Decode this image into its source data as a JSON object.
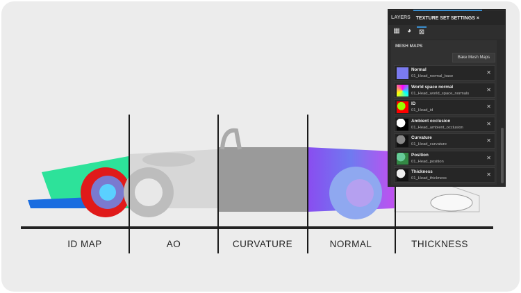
{
  "sections": [
    {
      "label": "ID MAP"
    },
    {
      "label": "AO"
    },
    {
      "label": "CURVATURE"
    },
    {
      "label": "NORMAL"
    },
    {
      "label": "THICKNESS"
    }
  ],
  "panel": {
    "tabs": [
      {
        "label": "LAYERS"
      },
      {
        "label": "TEXTURE SET SETTINGS",
        "active": true
      }
    ],
    "close_icon": "×",
    "tools": [
      {
        "icon": "texture-set-icon",
        "glyph": "▦"
      },
      {
        "icon": "mesh-maps-icon",
        "glyph": "◕"
      },
      {
        "icon": "uv-icon",
        "glyph": "⊠"
      }
    ],
    "section_title": "MESH MAPS",
    "bake_label": "Bake Mesh Maps",
    "maps": [
      {
        "name": "Normal",
        "file": "01_Head_normal_base",
        "thumb": "#7b7bf0"
      },
      {
        "name": "World space normal",
        "file": "01_Head_world_space_normals",
        "thumb": "conic-gradient(#f0f,#0ff,#ff0,#f0f)"
      },
      {
        "name": "ID",
        "file": "01_Head_id",
        "thumb": "radial-gradient(circle at 40% 40%,#9f0 40%,#f00 41%)"
      },
      {
        "name": "Ambient occlusion",
        "file": "01_Head_ambient_occlusion",
        "thumb": "radial-gradient(circle at 35% 35%,#fff 40%,#000 42%)"
      },
      {
        "name": "Curvature",
        "file": "01_Head_curvature",
        "thumb": "radial-gradient(circle at 35% 35%,#888 40%,#111 42%)"
      },
      {
        "name": "Position",
        "file": "01_Head_position",
        "thumb": "radial-gradient(circle at 35% 35%,#6c9 40%,#384 42%)"
      },
      {
        "name": "Thickness",
        "file": "01_Head_thickness",
        "thumb": "radial-gradient(circle at 35% 35%,#eee 40%,#111 42%)"
      }
    ]
  }
}
